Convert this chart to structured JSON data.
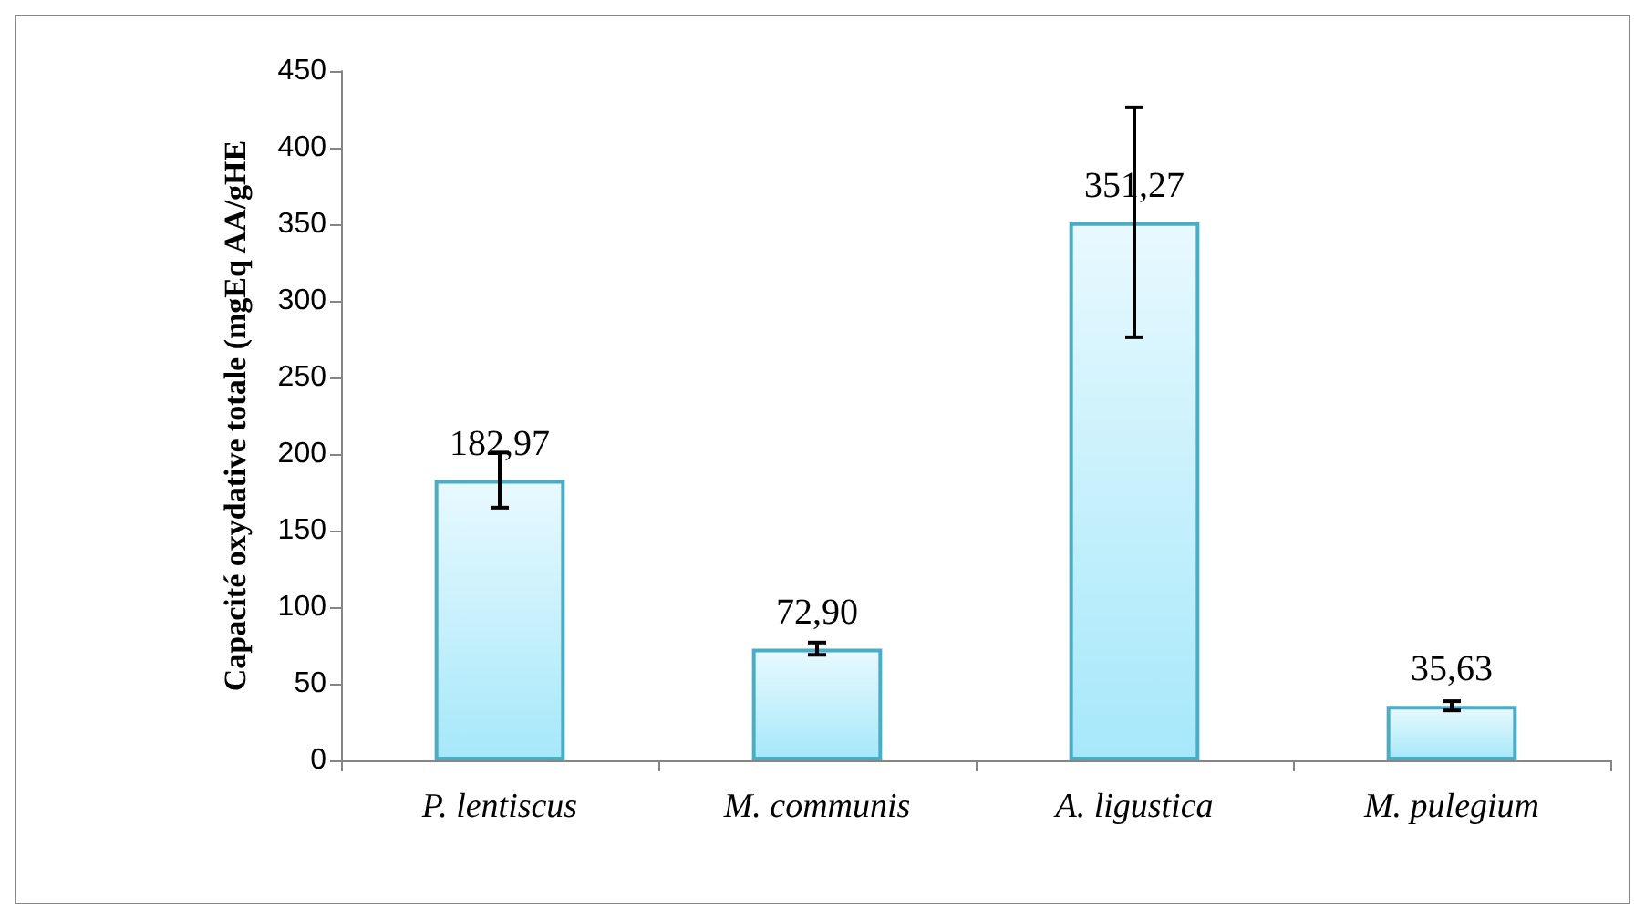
{
  "chart_data": {
    "type": "bar",
    "ylabel": "Capacité oxydative totale (mgEq AA/gHE",
    "categories": [
      "P. lentiscus",
      "M. communis",
      "A. ligustica",
      "M. pulegium"
    ],
    "values": [
      182.97,
      72.9,
      351.27,
      35.63
    ],
    "errors": [
      18,
      4,
      75,
      3
    ],
    "value_labels": [
      "182,97",
      "72,90",
      "351,27",
      "35,63"
    ],
    "color": "#4bacc6",
    "ylim": [
      0,
      450
    ],
    "yticks": [
      0,
      50,
      100,
      150,
      200,
      250,
      300,
      350,
      400,
      450
    ],
    "grid": false
  }
}
